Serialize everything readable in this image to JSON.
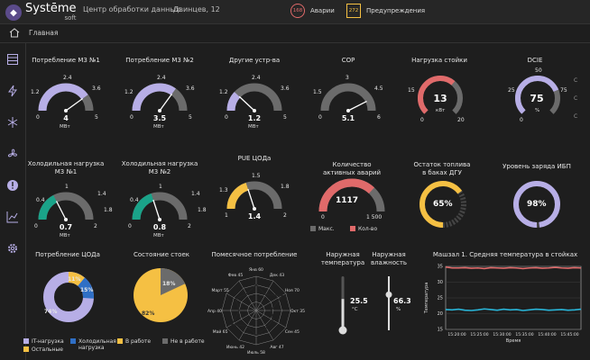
{
  "app": {
    "brand": "Systēme",
    "brand_sub": "soft",
    "location1": "Центр обработки данных",
    "location2": "Двинцев, 12"
  },
  "alerts": {
    "alarms_count": "168",
    "alarms_label": "Аварии",
    "warnings_count": "272",
    "warnings_label": "Предупреждения"
  },
  "breadcrumb": {
    "home": "Главная"
  },
  "colors": {
    "purple": "#b7aee6",
    "green": "#1aa389",
    "yellow": "#f5c043",
    "red": "#e06a6a",
    "grey": "#6b6b6b",
    "blue": "#2f6fc5"
  },
  "gauges": [
    {
      "title": "Потребление М3 №1",
      "value": "4",
      "unit": "МВт",
      "t0": "0",
      "t1": "1.2",
      "t2": "2.4",
      "t3": "3.6",
      "t4": "5",
      "fill": 0.8
    },
    {
      "title": "Потребление М3 №2",
      "value": "3.5",
      "unit": "МВт",
      "t0": "0",
      "t1": "1.2",
      "t2": "2.4",
      "t3": "3.6",
      "t4": "5",
      "fill": 0.7
    },
    {
      "title": "Другие устр-ва",
      "value": "1.2",
      "unit": "МВт",
      "t0": "0",
      "t1": "1.2",
      "t2": "2.4",
      "t3": "3.6",
      "t4": "5",
      "fill": 0.24
    },
    {
      "title": "COP",
      "value": "5.1",
      "unit": "",
      "t0": "0",
      "t1": "1.5",
      "t2": "3",
      "t3": "4.5",
      "t4": "6",
      "fill": 0.85
    },
    {
      "title": "Холодильная нагрузка\nМ3 №1",
      "value": "0.7",
      "unit": "МВт",
      "t0": "0",
      "t1": "0.4",
      "t2": "1",
      "t3": "1.4",
      "t4": "2",
      "t5": "1.8",
      "fill": 0.35
    },
    {
      "title": "Холодильная нагрузка\nМ3 №2",
      "value": "0.8",
      "unit": "МВт",
      "t0": "0",
      "t1": "0.4",
      "t2": "1",
      "t3": "1.4",
      "t4": "2",
      "t5": "1.8",
      "fill": 0.4
    },
    {
      "title": "PUE ЦОДа",
      "value": "1.4",
      "unit": "",
      "t0": "1",
      "t1": "1.3",
      "t2": "1.5",
      "t3": "1.8",
      "t4": "2",
      "fill": 0.4
    }
  ],
  "rack_load": {
    "title": "Нагрузка стойки",
    "value": "13",
    "unit": "кВт",
    "min": "0",
    "max": "20",
    "t1": "15",
    "fill": 0.65
  },
  "dcie": {
    "title": "DCIE",
    "value": "75",
    "unit": "%",
    "t0": "0",
    "t1": "25",
    "t2": "50",
    "t3": "75",
    "fill": 0.75
  },
  "active_alarms": {
    "title": "Количество\nактивных аварий",
    "value": "1117",
    "min": "0",
    "max": "1 500",
    "fill": 0.74,
    "legend_max": "Макс.",
    "legend_count": "Кол-во"
  },
  "fuel": {
    "title": "Остаток топлива\nв баках ДГУ",
    "value": "65%",
    "fill": 0.65
  },
  "ups": {
    "title": "Уровень заряда ИБП",
    "value": "98%",
    "fill": 0.98
  },
  "pie_consumption": {
    "title": "Потребление ЦОДа",
    "type": "pie",
    "slices": [
      {
        "name": "IT-нагрузка",
        "value": 74
      },
      {
        "name": "Холодильная нагрузка",
        "value": 15
      },
      {
        "name": "В работе",
        "value": 0
      },
      {
        "name": "Остальные",
        "value": 11
      }
    ],
    "label_a": "74%",
    "label_b": "15%",
    "label_c": "11%",
    "legend": [
      "IT-нагрузка",
      "Холодильная нагрузка",
      "Остальные"
    ]
  },
  "pie_racks": {
    "title": "Состояние стоек",
    "type": "pie",
    "slices": [
      {
        "name": "В работе",
        "value": 82
      },
      {
        "name": "Не в работе",
        "value": 18
      }
    ],
    "label_a": "82%",
    "label_b": "18%",
    "legend": [
      "В работе",
      "Не в работе"
    ]
  },
  "radar": {
    "title": "Помесячное потребление",
    "type": "radar",
    "axes": [
      "Янв 60",
      "Дек 43",
      "Ноя 70",
      "Окт 35",
      "Сен 45",
      "Авг 47",
      "Июль 58",
      "Июнь 42",
      "Май 65",
      "Апр 40",
      "Март 55",
      "Фев 45"
    ],
    "values": [
      60,
      43,
      70,
      35,
      45,
      47,
      58,
      42,
      65,
      40,
      55,
      45
    ]
  },
  "temp_out": {
    "title": "Наружная\nтемпература",
    "value": "25.5",
    "unit": "°C",
    "fill": 0.55
  },
  "humidity": {
    "title": "Наружная\nвлажность",
    "value": "66.3",
    "unit": "%",
    "fill": 0.66
  },
  "chart_data": {
    "type": "line",
    "title": "Машзал 1. Средняя температура в стойках",
    "xlabel": "Время",
    "ylabel": "Температура",
    "xticks": [
      "15:20:00",
      "15:25:00",
      "15:30:00",
      "15:35:00",
      "15:40:00",
      "15:45:00"
    ],
    "ylim": [
      15,
      35
    ],
    "yticks": [
      "15",
      "20",
      "25",
      "30",
      "35"
    ],
    "series": [
      {
        "name": "",
        "color": "#e06a6a",
        "values": [
          34.8,
          34.5,
          34.5,
          34.6,
          34.4,
          34.5,
          34.3,
          34.6,
          34.5,
          34.4,
          34.6,
          34.5,
          34.3,
          34.5,
          34.6,
          34.4,
          34.5,
          34.7,
          34.5,
          34.4,
          34.6,
          34.5
        ]
      },
      {
        "name": "",
        "color": "#29b5d8",
        "values": [
          21.3,
          21.2,
          21.4,
          21.1,
          21.0,
          21.2,
          21.5,
          21.3,
          21.1,
          21.4,
          21.2,
          21.3,
          21.0,
          21.2,
          21.4,
          21.3,
          21.1,
          21.2,
          21.3,
          21.1,
          21.2,
          21.4
        ]
      }
    ]
  }
}
